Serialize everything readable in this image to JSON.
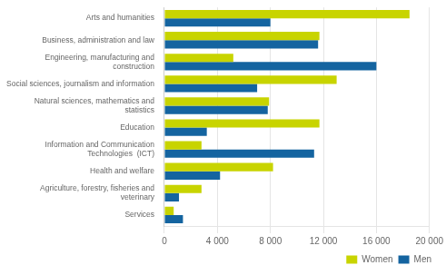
{
  "chart_data": {
    "type": "bar",
    "orientation": "horizontal",
    "categories": [
      "Services",
      "Agriculture, forestry, fisheries and\nveterinary",
      "Health and welfare",
      "Information and Communication\nTechnologies  (ICT)",
      "Education",
      "Natural sciences, mathematics and\nstatistics",
      "Social sciences, journalism and information",
      "Engineering, manufacturing and\nconstruction",
      "Business, administration and law",
      "Arts and humanities"
    ],
    "series": [
      {
        "name": "Women",
        "color": "#c8d400",
        "values": [
          700,
          2800,
          8200,
          2800,
          11700,
          7900,
          13000,
          5200,
          11700,
          18500
        ]
      },
      {
        "name": "Men",
        "color": "#1464a0",
        "values": [
          1400,
          1100,
          4200,
          11300,
          3200,
          7800,
          7000,
          16000,
          11600,
          8000
        ]
      }
    ],
    "xlim": [
      0,
      20000
    ],
    "xticks": [
      0,
      {
        "value": 4000,
        "label": "4 000"
      },
      {
        "value": 8000,
        "label": "8 000"
      },
      {
        "value": 12000,
        "label": "12 000"
      },
      {
        "value": 16000,
        "label": "16 000"
      },
      {
        "value": 20000,
        "label": "20 000"
      }
    ],
    "grid": true,
    "legend": "lower right"
  }
}
